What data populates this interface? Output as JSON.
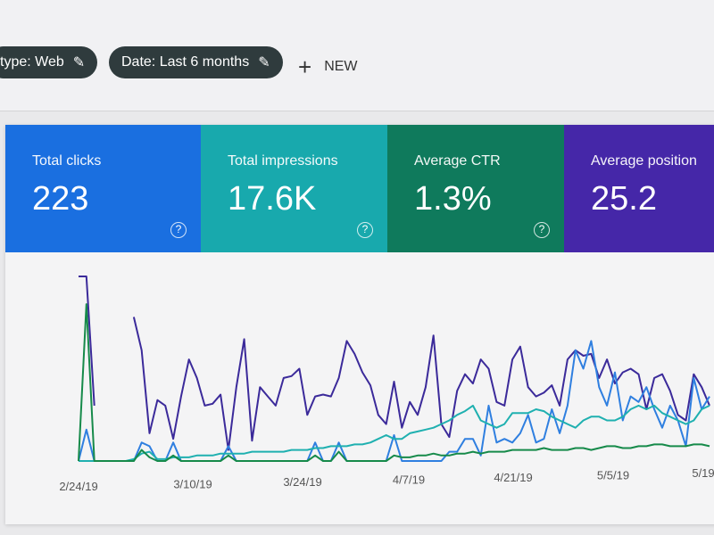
{
  "filters": {
    "type_chip": "type: Web",
    "date_chip": "Date: Last 6 months",
    "new_label": "NEW"
  },
  "cards": [
    {
      "label": "Total clicks",
      "value": "223",
      "color": "#1a6fe0"
    },
    {
      "label": "Total impressions",
      "value": "17.6K",
      "color": "#18a9ad"
    },
    {
      "label": "Average CTR",
      "value": "1.3%",
      "color": "#0f7a5c"
    },
    {
      "label": "Average position",
      "value": "25.2",
      "color": "#4527a8"
    }
  ],
  "chart_data": {
    "type": "line",
    "x_ticks": [
      "2/24/19",
      "3/10/19",
      "3/24/19",
      "4/7/19",
      "4/21/19",
      "5/5/19",
      "5/19"
    ],
    "grid": false,
    "series": [
      {
        "color": "#3b2a9a",
        "values": [
          100,
          100,
          30,
          null,
          null,
          null,
          null,
          78,
          60,
          15,
          33,
          30,
          12,
          35,
          55,
          45,
          30,
          31,
          36,
          6,
          40,
          66,
          11,
          40,
          35,
          30,
          45,
          46,
          50,
          25,
          35,
          36,
          35,
          45,
          65,
          58,
          48,
          41,
          25,
          20,
          43,
          18,
          32,
          25,
          40,
          68,
          20,
          13,
          38,
          47,
          42,
          55,
          50,
          32,
          30,
          55,
          62,
          40,
          35,
          37,
          41,
          30,
          55,
          60,
          57,
          58,
          45,
          55,
          42,
          48,
          50,
          47,
          28,
          45,
          47,
          38,
          25,
          22,
          47,
          40,
          30
        ]
      },
      {
        "color": "#2f7fe0",
        "values": [
          0,
          17,
          0,
          0,
          0,
          0,
          0,
          0,
          10,
          8,
          0,
          0,
          10,
          0,
          0,
          0,
          0,
          0,
          0,
          8,
          0,
          0,
          0,
          0,
          0,
          0,
          0,
          0,
          0,
          0,
          10,
          0,
          0,
          10,
          0,
          0,
          0,
          0,
          0,
          0,
          14,
          0,
          0,
          0,
          0,
          0,
          0,
          5,
          5,
          12,
          12,
          3,
          30,
          10,
          12,
          10,
          15,
          25,
          10,
          12,
          28,
          15,
          30,
          60,
          50,
          65,
          40,
          30,
          48,
          22,
          35,
          32,
          40,
          28,
          18,
          30,
          22,
          8,
          45,
          28,
          35
        ]
      },
      {
        "color": "#1fb0b0",
        "values": [
          0,
          0,
          0,
          0,
          0,
          0,
          0,
          1,
          4,
          5,
          1,
          1,
          2,
          2,
          2,
          3,
          3,
          3,
          4,
          4,
          4,
          4,
          5,
          5,
          5,
          5,
          5,
          6,
          6,
          6,
          7,
          7,
          8,
          8,
          8,
          9,
          9,
          10,
          12,
          14,
          12,
          12,
          15,
          16,
          17,
          18,
          20,
          22,
          25,
          27,
          30,
          22,
          20,
          18,
          20,
          26,
          26,
          26,
          28,
          27,
          24,
          22,
          20,
          18,
          22,
          24,
          24,
          22,
          22,
          24,
          28,
          30,
          28,
          30,
          26,
          24,
          22,
          20,
          22,
          28,
          30
        ]
      },
      {
        "color": "#168a4a",
        "values": [
          0,
          85,
          0,
          0,
          0,
          0,
          0,
          0,
          6,
          2,
          0,
          0,
          3,
          0,
          0,
          0,
          0,
          0,
          0,
          3,
          0,
          0,
          0,
          0,
          0,
          0,
          0,
          0,
          0,
          0,
          3,
          0,
          0,
          5,
          0,
          0,
          0,
          0,
          0,
          0,
          3,
          2,
          2,
          3,
          3,
          4,
          3,
          3,
          4,
          4,
          5,
          4,
          5,
          5,
          5,
          6,
          6,
          6,
          6,
          7,
          6,
          6,
          6,
          7,
          7,
          6,
          7,
          8,
          8,
          7,
          7,
          8,
          8,
          9,
          9,
          8,
          8,
          8,
          9,
          9,
          8
        ]
      }
    ]
  }
}
